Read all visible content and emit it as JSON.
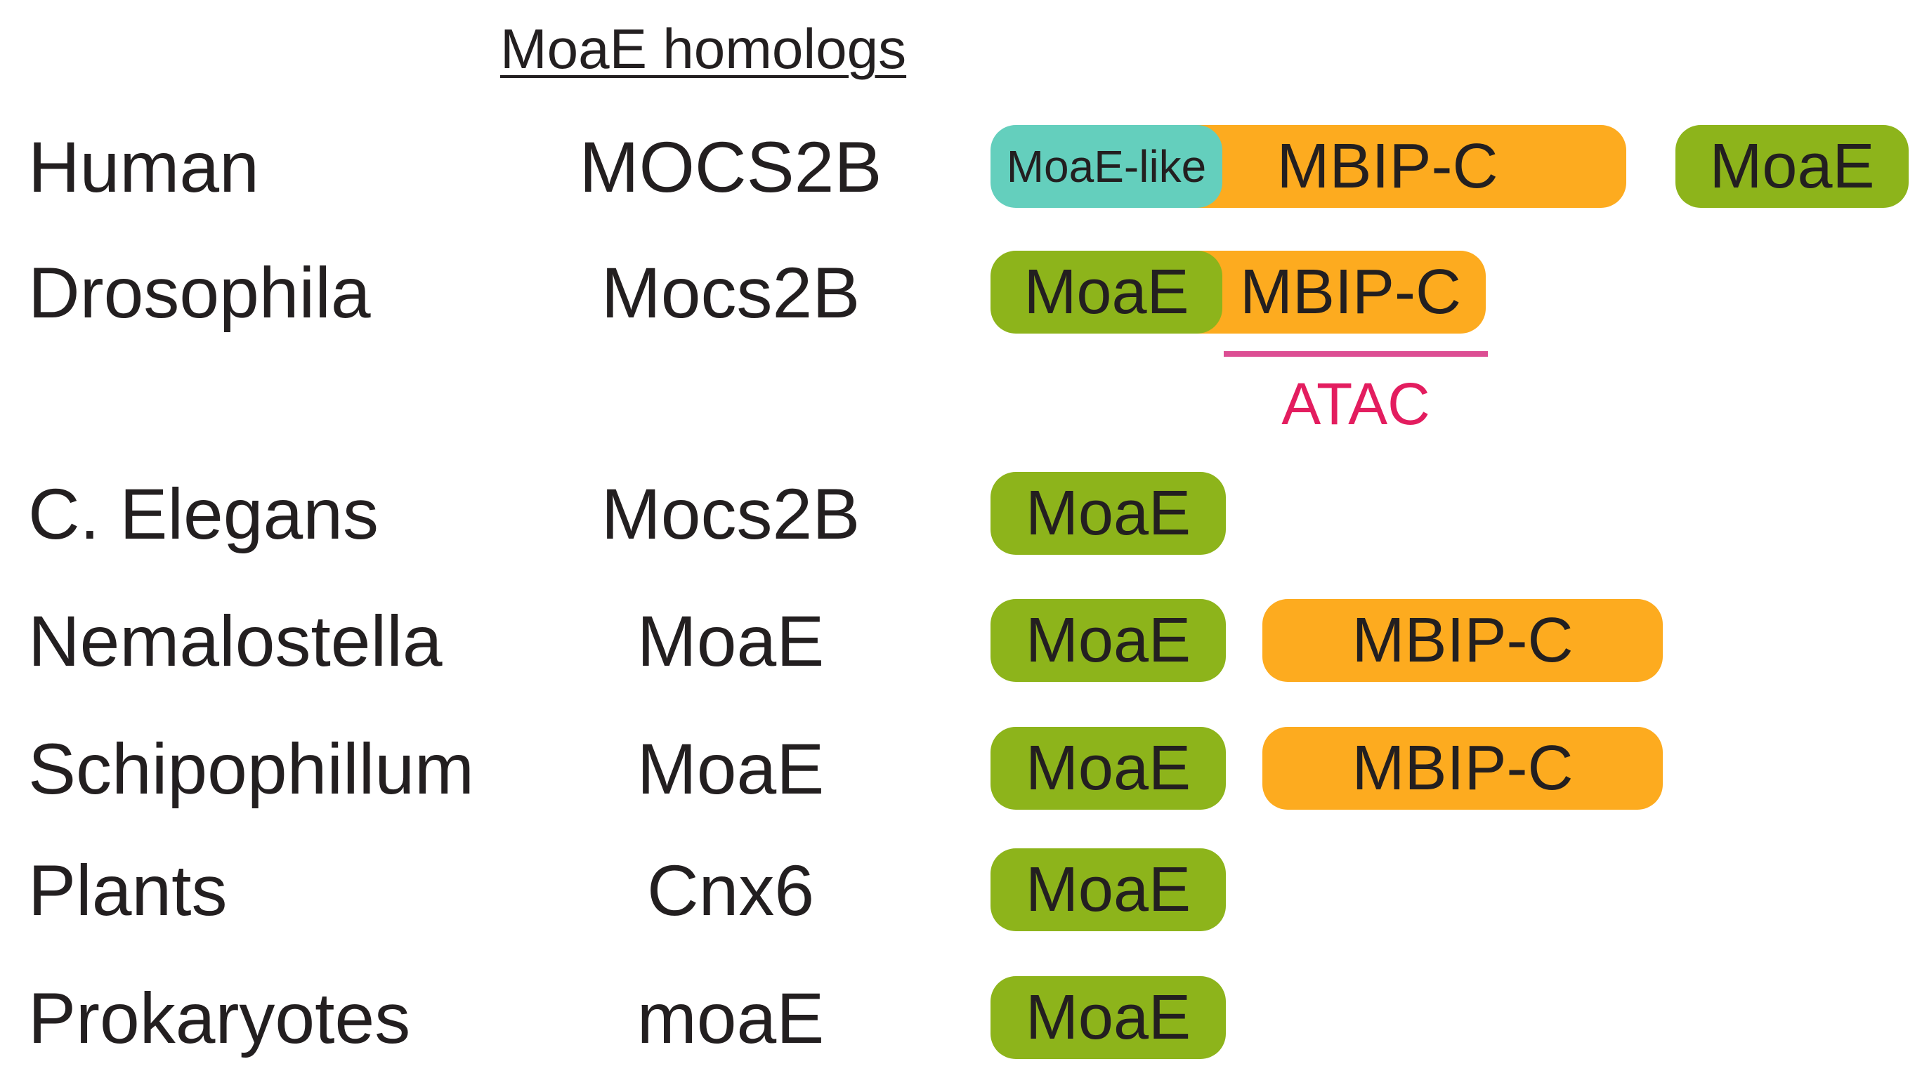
{
  "header": "MoaE homologs",
  "rows": [
    {
      "organism": "Human",
      "gene": "MOCS2B",
      "domains": [
        {
          "label": "MoaE-like",
          "kind": "teal"
        },
        {
          "label": "MBIP-C",
          "kind": "orange"
        },
        {
          "label": "MoaE",
          "kind": "green"
        }
      ]
    },
    {
      "organism": "Drosophila",
      "gene": "Mocs2B",
      "domains": [
        {
          "label": "MoaE",
          "kind": "green"
        },
        {
          "label": "MBIP-C",
          "kind": "orange"
        }
      ]
    },
    {
      "organism": "C. Elegans",
      "gene": "Mocs2B",
      "domains": [
        {
          "label": "MoaE",
          "kind": "green"
        }
      ]
    },
    {
      "organism": "Nemalostella",
      "gene": "MoaE",
      "domains": [
        {
          "label": "MoaE",
          "kind": "green"
        },
        {
          "label": "MBIP-C",
          "kind": "orange"
        }
      ]
    },
    {
      "organism": "Schipophillum",
      "gene": "MoaE",
      "domains": [
        {
          "label": "MoaE",
          "kind": "green"
        },
        {
          "label": "MBIP-C",
          "kind": "orange"
        }
      ]
    },
    {
      "organism": "Plants",
      "gene": "Cnx6",
      "domains": [
        {
          "label": "MoaE",
          "kind": "green"
        }
      ]
    },
    {
      "organism": "Prokaryotes",
      "gene": "moaE",
      "domains": [
        {
          "label": "MoaE",
          "kind": "green"
        }
      ]
    }
  ],
  "atac": {
    "label": "ATAC"
  },
  "colors": {
    "moae": "#8db41b",
    "mbip_c": "#fdab1f",
    "moae_like": "#64cfbd",
    "atac": "#e31d5f"
  }
}
